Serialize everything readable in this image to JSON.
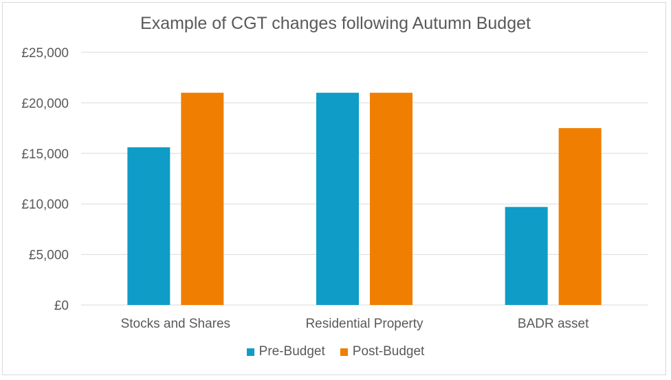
{
  "chart_data": {
    "type": "bar",
    "title": "Example of CGT changes following Autumn Budget",
    "categories": [
      "Stocks and Shares",
      "Residential Property",
      "BADR asset"
    ],
    "series": [
      {
        "name": "Pre-Budget",
        "values": [
          15600,
          21000,
          9700
        ],
        "color": "#0f9cc7"
      },
      {
        "name": "Post-Budget",
        "values": [
          21000,
          21000,
          17500
        ],
        "color": "#f07e00"
      }
    ],
    "ylim": [
      0,
      25000
    ],
    "yticks": [
      "£0",
      "£5,000",
      "£10,000",
      "£15,000",
      "£20,000",
      "£25,000"
    ],
    "ytick_values": [
      0,
      5000,
      10000,
      15000,
      20000,
      25000
    ],
    "grid": true,
    "legend_position": "bottom"
  }
}
